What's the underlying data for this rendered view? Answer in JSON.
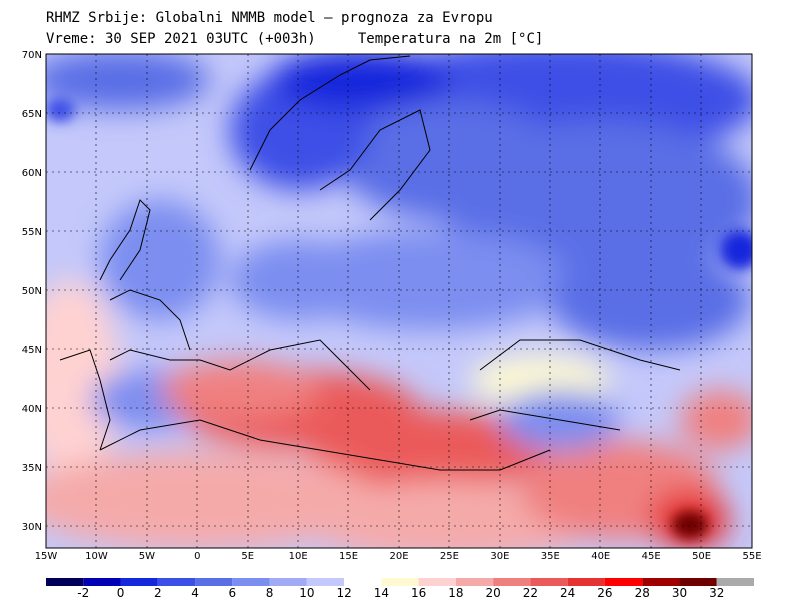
{
  "header": {
    "line1": "RHMZ Srbije: Globalni NMMB model — prognoza za Evropu",
    "line2_left": "Vreme: 30 SEP 2021 03UTC (+003h)",
    "line2_right": "Temperatura na 2m [°C]"
  },
  "axes": {
    "lat_labels": [
      "70N",
      "65N",
      "60N",
      "55N",
      "50N",
      "45N",
      "40N",
      "35N",
      "30N"
    ],
    "lon_labels": [
      "15W",
      "10W",
      "5W",
      "0",
      "5E",
      "10E",
      "15E",
      "20E",
      "25E",
      "30E",
      "35E",
      "40E",
      "45E",
      "50E",
      "55E"
    ]
  },
  "colorbar": {
    "labels": [
      "-2",
      "0",
      "2",
      "4",
      "6",
      "8",
      "10",
      "12",
      "14",
      "16",
      "18",
      "20",
      "22",
      "24",
      "26",
      "28",
      "30",
      "32"
    ],
    "colors": [
      "#00005a",
      "#0000b4",
      "#1428dc",
      "#3c50e6",
      "#5a6ee6",
      "#7c8ef0",
      "#a0aaf5",
      "#c4c8fa",
      "#ffffff",
      "#fffad2",
      "#ffd2d2",
      "#f5aaaa",
      "#f08080",
      "#eb5a5a",
      "#e63232",
      "#ff0000",
      "#a00000",
      "#6e0000",
      "#aaaaaa"
    ]
  },
  "chart_data": {
    "type": "heatmap",
    "title": "Temperatura na 2m [°C]",
    "x_range": [
      "15W",
      "55E"
    ],
    "y_range": [
      "28N",
      "70N"
    ],
    "value_unit": "°C"
  }
}
